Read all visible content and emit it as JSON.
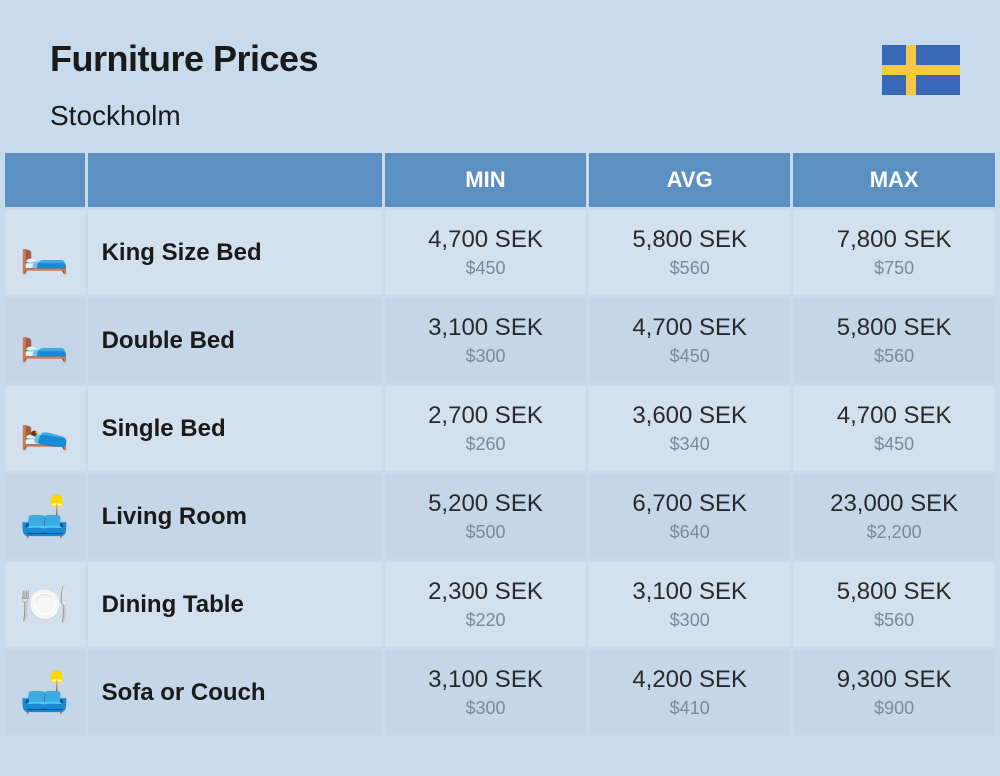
{
  "header": {
    "title": "Furniture Prices",
    "subtitle": "Stockholm",
    "flag": {
      "bg": "#3a68b8",
      "cross": "#f6c945"
    }
  },
  "styling": {
    "page_bg": "#c8dbed",
    "header_row_bg": "#5c8fc2",
    "header_row_text": "#ffffff",
    "row_odd_bg": "#d3e0ee",
    "row_even_bg": "#c5d6e8",
    "title_fontsize": 36,
    "subtitle_fontsize": 28,
    "th_fontsize": 22,
    "name_fontsize": 24,
    "primary_fontsize": 24,
    "secondary_fontsize": 18,
    "primary_color": "#2a2a2a",
    "secondary_color": "#7a8a9a",
    "col_widths": {
      "icon": 80,
      "name": 300,
      "val": 205
    },
    "border_spacing": 3
  },
  "columns": {
    "min": "MIN",
    "avg": "AVG",
    "max": "MAX"
  },
  "rows": [
    {
      "icon": "🛏️",
      "name": "King Size Bed",
      "min": {
        "primary": "4,700 SEK",
        "secondary": "$450"
      },
      "avg": {
        "primary": "5,800 SEK",
        "secondary": "$560"
      },
      "max": {
        "primary": "7,800 SEK",
        "secondary": "$750"
      }
    },
    {
      "icon": "🛏️",
      "name": "Double Bed",
      "min": {
        "primary": "3,100 SEK",
        "secondary": "$300"
      },
      "avg": {
        "primary": "4,700 SEK",
        "secondary": "$450"
      },
      "max": {
        "primary": "5,800 SEK",
        "secondary": "$560"
      }
    },
    {
      "icon": "🛌",
      "name": "Single Bed",
      "min": {
        "primary": "2,700 SEK",
        "secondary": "$260"
      },
      "avg": {
        "primary": "3,600 SEK",
        "secondary": "$340"
      },
      "max": {
        "primary": "4,700 SEK",
        "secondary": "$450"
      }
    },
    {
      "icon": "🛋️",
      "name": "Living Room",
      "min": {
        "primary": "5,200 SEK",
        "secondary": "$500"
      },
      "avg": {
        "primary": "6,700 SEK",
        "secondary": "$640"
      },
      "max": {
        "primary": "23,000 SEK",
        "secondary": "$2,200"
      }
    },
    {
      "icon": "🍽️",
      "name": "Dining Table",
      "min": {
        "primary": "2,300 SEK",
        "secondary": "$220"
      },
      "avg": {
        "primary": "3,100 SEK",
        "secondary": "$300"
      },
      "max": {
        "primary": "5,800 SEK",
        "secondary": "$560"
      }
    },
    {
      "icon": "🛋️",
      "name": "Sofa or Couch",
      "min": {
        "primary": "3,100 SEK",
        "secondary": "$300"
      },
      "avg": {
        "primary": "4,200 SEK",
        "secondary": "$410"
      },
      "max": {
        "primary": "9,300 SEK",
        "secondary": "$900"
      }
    }
  ]
}
